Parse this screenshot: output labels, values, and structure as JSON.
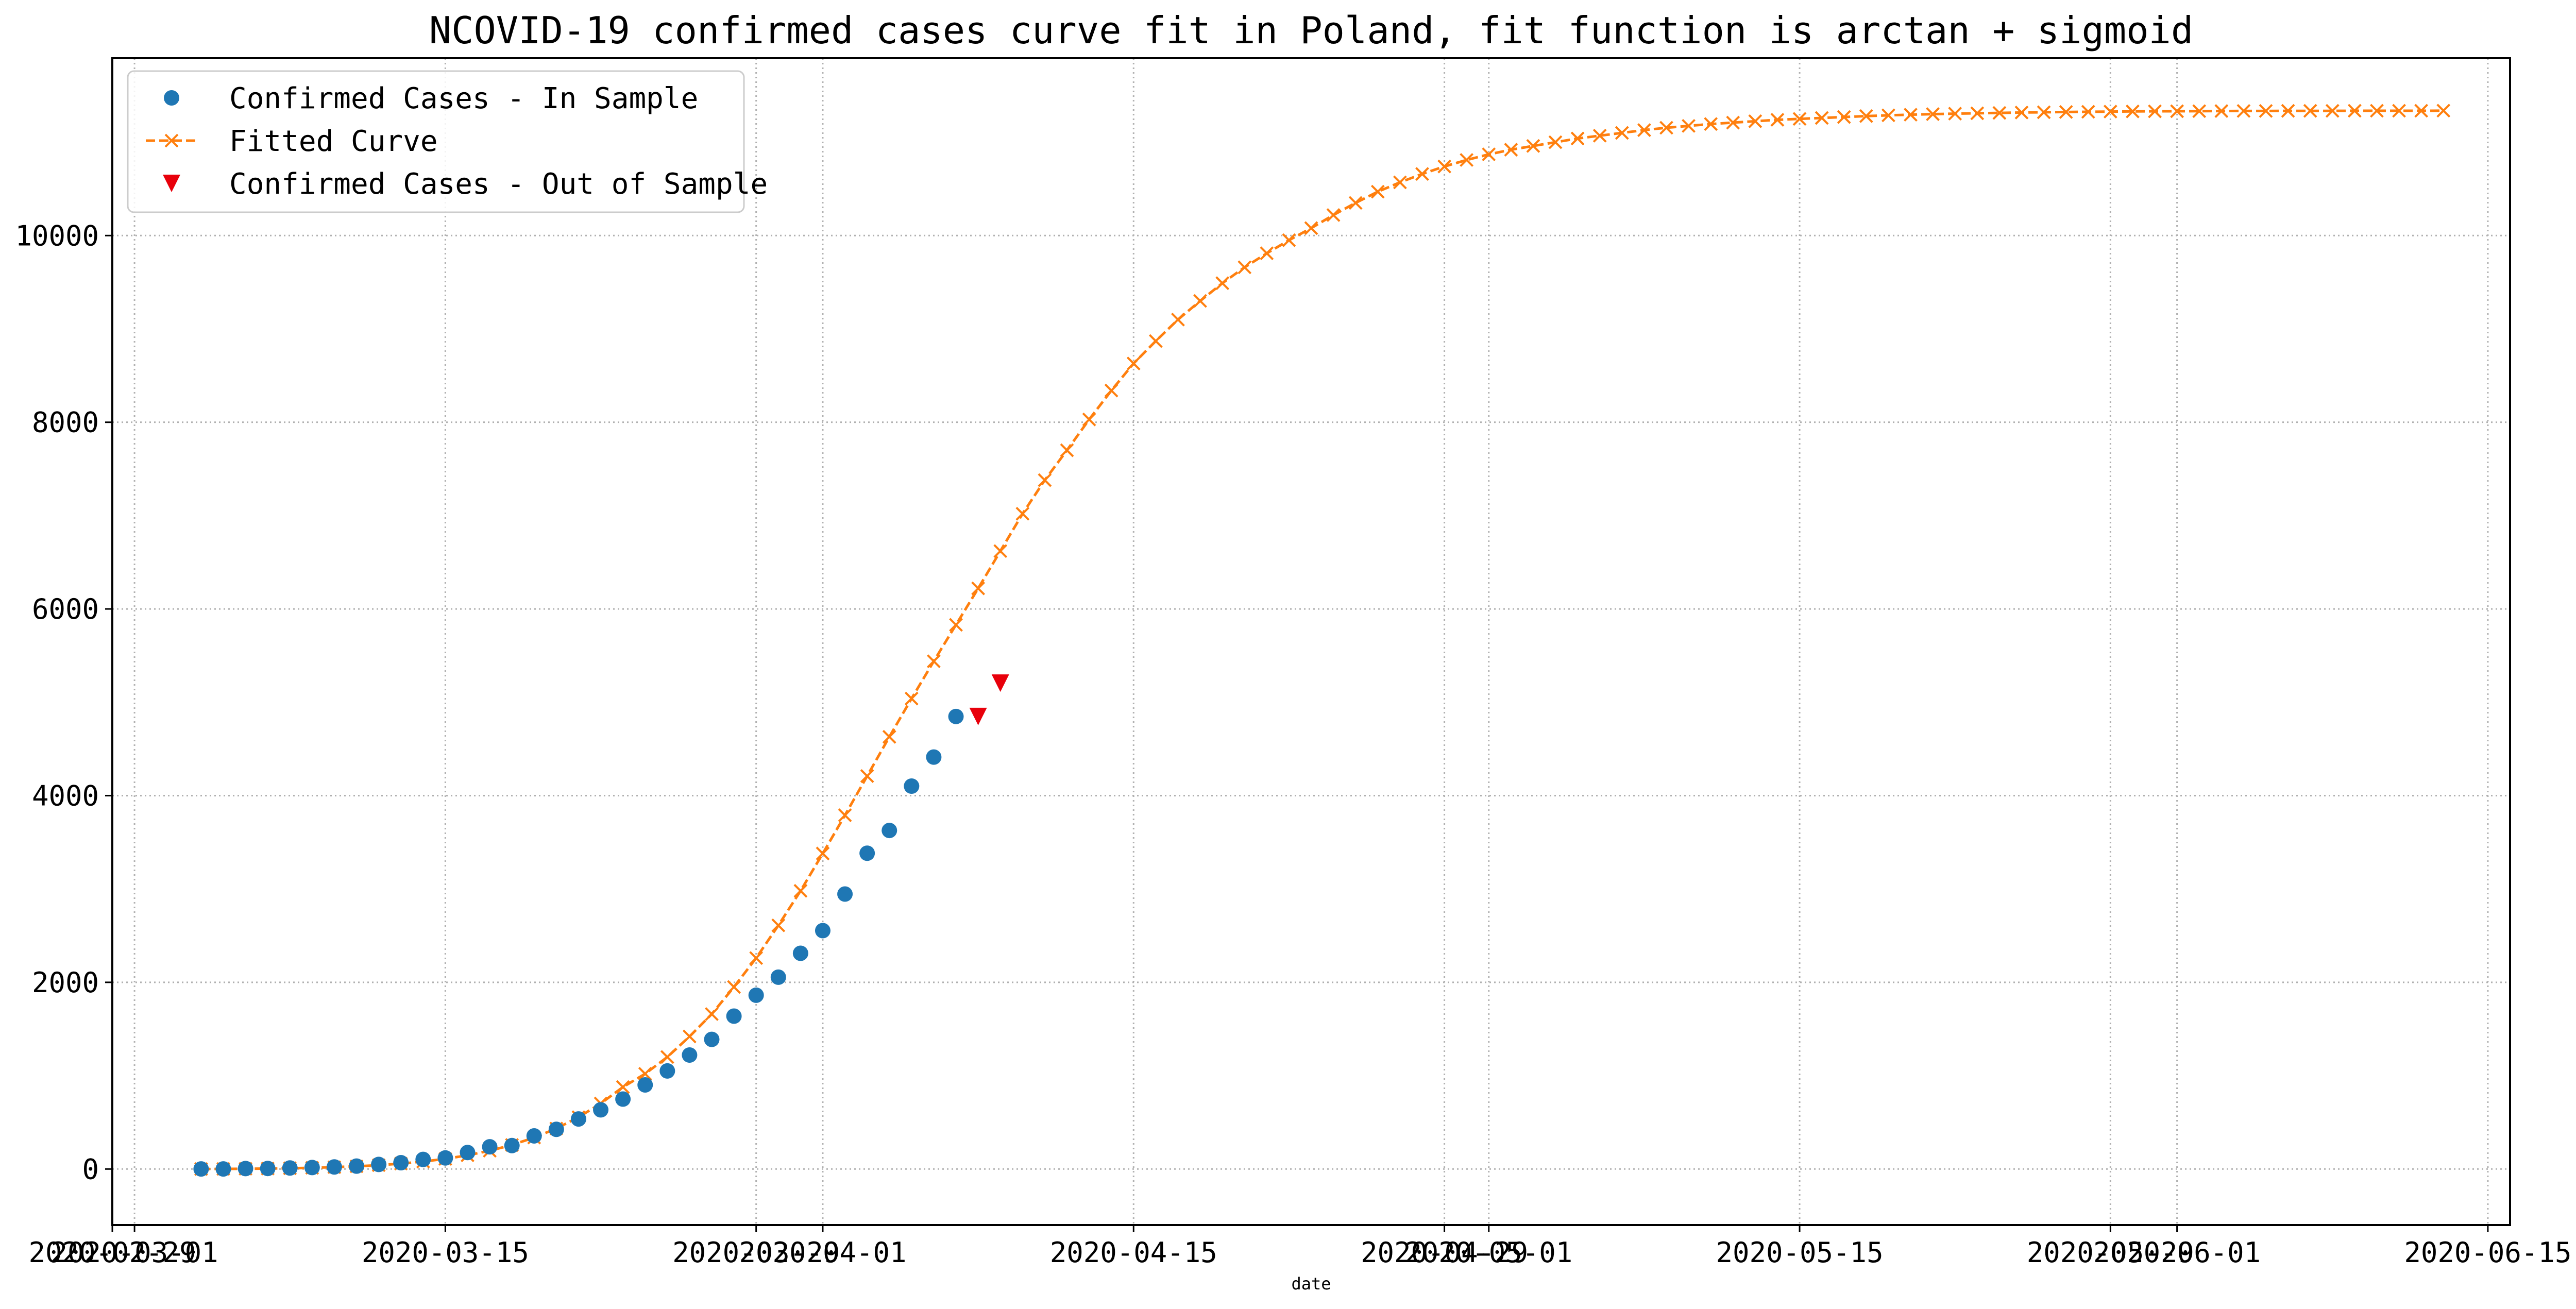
{
  "chart_data": {
    "type": "line",
    "title": "NCOVID-19 confirmed cases curve fit in Poland, fit function is arctan + sigmoid",
    "xlabel": "date",
    "ylabel": "",
    "x_axis": {
      "type": "date",
      "range": [
        "2020-02-29",
        "2020-06-16"
      ],
      "tick_labels": [
        "2020-02-29",
        "2020-03-01",
        "2020-03-15",
        "2020-03-29",
        "2020-04-01",
        "2020-04-15",
        "2020-04-29",
        "2020-05-01",
        "2020-05-15",
        "2020-05-29",
        "2020-06-01",
        "2020-06-15"
      ]
    },
    "y_axis": {
      "range": [
        -600,
        11900
      ],
      "tick_values": [
        0,
        2000,
        4000,
        6000,
        8000,
        10000
      ],
      "tick_labels": [
        "0",
        "2000",
        "4000",
        "6000",
        "8000",
        "10000"
      ]
    },
    "grid": true,
    "legend_position": "top-left",
    "colors": {
      "in_sample": "#1f77b4",
      "fitted": "#ff7f0e",
      "out_of_sample": "#e8000b"
    },
    "series": [
      {
        "name": "Confirmed Cases - In Sample",
        "marker": "circle",
        "start_date": "2020-03-04",
        "dates": [
          "2020-03-04",
          "2020-03-05",
          "2020-03-06",
          "2020-03-07",
          "2020-03-08",
          "2020-03-09",
          "2020-03-10",
          "2020-03-11",
          "2020-03-12",
          "2020-03-13",
          "2020-03-14",
          "2020-03-15",
          "2020-03-16",
          "2020-03-17",
          "2020-03-18",
          "2020-03-19",
          "2020-03-20",
          "2020-03-21",
          "2020-03-22",
          "2020-03-23",
          "2020-03-24",
          "2020-03-25",
          "2020-03-26",
          "2020-03-27",
          "2020-03-28",
          "2020-03-29",
          "2020-03-30",
          "2020-03-31",
          "2020-04-01",
          "2020-04-02",
          "2020-04-03",
          "2020-04-04",
          "2020-04-05",
          "2020-04-06",
          "2020-04-07"
        ],
        "values": [
          1,
          1,
          5,
          6,
          11,
          16,
          22,
          31,
          49,
          68,
          103,
          119,
          177,
          238,
          251,
          355,
          425,
          536,
          634,
          749,
          901,
          1051,
          1221,
          1389,
          1638,
          1862,
          2055,
          2311,
          2554,
          2946,
          3383,
          3627,
          4102,
          4413,
          4848
        ]
      },
      {
        "name": "Fitted Curve",
        "marker": "x",
        "start_date": "2020-03-04",
        "values": [
          0,
          1,
          3,
          5,
          8,
          13,
          20,
          29,
          41,
          58,
          80,
          109,
          147,
          196,
          258,
          337,
          434,
          555,
          702,
          878,
          1020,
          1200,
          1420,
          1660,
          1950,
          2260,
          2610,
          2980,
          3380,
          3790,
          4210,
          4630,
          5040,
          5440,
          5830,
          6220,
          6620,
          7020,
          7380,
          7700,
          8030,
          8340,
          8630,
          8870,
          9100,
          9300,
          9490,
          9660,
          9810,
          9950,
          10080,
          10220,
          10350,
          10470,
          10570,
          10660,
          10740,
          10810,
          10870,
          10920,
          10960,
          11000,
          11040,
          11070,
          11100,
          11130,
          11155,
          11175,
          11195,
          11210,
          11225,
          11240,
          11250,
          11260,
          11270,
          11280,
          11288,
          11295,
          11301,
          11306,
          11310,
          11314,
          11318,
          11321,
          11324,
          11326,
          11328,
          11330,
          11331,
          11332,
          11333,
          11334,
          11335,
          11335,
          11336,
          11336,
          11336,
          11337,
          11337,
          11337,
          11337,
          11338
        ]
      },
      {
        "name": "Confirmed Cases - Out of Sample",
        "marker": "triangle-down",
        "dates": [
          "2020-04-08",
          "2020-04-09"
        ],
        "values": [
          4848,
          5205
        ]
      }
    ]
  }
}
